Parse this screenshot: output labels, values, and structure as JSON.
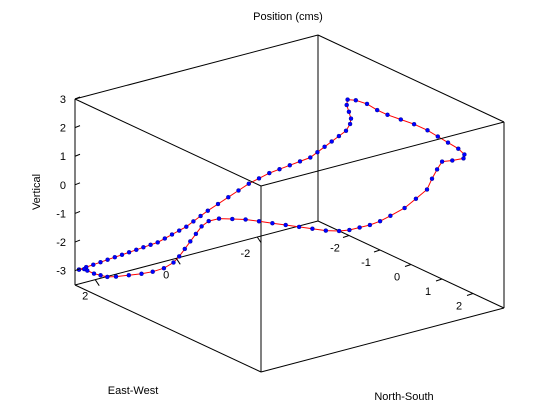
{
  "chart_data": {
    "type": "line",
    "title": "Position (cms)",
    "xlabel": "North-South",
    "ylabel": "East-West",
    "zlabel": "Vertical",
    "xlim": [
      -3,
      3
    ],
    "ylim": [
      -3.5,
      2.5
    ],
    "zlim": [
      -3.5,
      3
    ],
    "xticks": [
      "-2",
      "-1",
      "0",
      "1",
      "2"
    ],
    "yticks": [
      "2",
      "0",
      "-2"
    ],
    "zticks": [
      "3",
      "2",
      "1",
      "0",
      "-1",
      "-2",
      "-3"
    ],
    "grid": false,
    "colors": {
      "line": "#ff0000",
      "marker": "#0000ff"
    },
    "series": [
      {
        "points": [
          [
            -3.0,
            2.4,
            -3.0
          ],
          [
            -2.9,
            2.3,
            -2.9
          ],
          [
            -2.8,
            2.2,
            -2.8
          ],
          [
            -2.7,
            2.1,
            -2.7
          ],
          [
            -2.6,
            2.0,
            -2.6
          ],
          [
            -2.5,
            1.9,
            -2.5
          ],
          [
            -2.4,
            1.8,
            -2.4
          ],
          [
            -2.3,
            1.7,
            -2.3
          ],
          [
            -2.2,
            1.6,
            -2.2
          ],
          [
            -2.1,
            1.5,
            -2.1
          ],
          [
            -2.0,
            1.4,
            -2.0
          ],
          [
            -1.9,
            1.3,
            -1.9
          ],
          [
            -1.8,
            1.2,
            -1.75
          ],
          [
            -1.7,
            1.1,
            -1.6
          ],
          [
            -1.6,
            1.0,
            -1.45
          ],
          [
            -1.5,
            0.9,
            -1.3
          ],
          [
            -1.4,
            0.8,
            -1.1
          ],
          [
            -1.3,
            0.7,
            -0.9
          ],
          [
            -1.2,
            0.6,
            -0.7
          ],
          [
            -1.0,
            0.5,
            -0.4
          ],
          [
            -0.8,
            0.4,
            -0.1
          ],
          [
            -0.6,
            0.3,
            0.2
          ],
          [
            -0.4,
            0.2,
            0.5
          ],
          [
            -0.2,
            0.1,
            0.75
          ],
          [
            0.0,
            0.0,
            1.0
          ],
          [
            0.2,
            -0.1,
            1.2
          ],
          [
            0.4,
            -0.2,
            1.4
          ],
          [
            0.6,
            -0.3,
            1.6
          ],
          [
            0.8,
            -0.4,
            1.8
          ],
          [
            0.9,
            -0.5,
            2.0
          ],
          [
            1.0,
            -0.6,
            2.2
          ],
          [
            1.1,
            -0.7,
            2.4
          ],
          [
            1.2,
            -0.8,
            2.6
          ],
          [
            1.3,
            -0.9,
            2.8
          ],
          [
            1.3,
            -1.0,
            3.0
          ],
          [
            1.2,
            -1.1,
            3.1
          ],
          [
            1.0,
            -1.2,
            3.2
          ],
          [
            0.8,
            -1.3,
            3.3
          ],
          [
            0.7,
            -1.4,
            3.4
          ],
          [
            0.7,
            -1.6,
            3.3
          ],
          [
            0.8,
            -1.8,
            3.15
          ],
          [
            1.0,
            -1.9,
            3.0
          ],
          [
            1.2,
            -2.0,
            2.9
          ],
          [
            1.5,
            -2.1,
            2.85
          ],
          [
            1.8,
            -2.2,
            2.8
          ],
          [
            2.1,
            -2.3,
            2.7
          ],
          [
            2.3,
            -2.4,
            2.55
          ],
          [
            2.5,
            -2.5,
            2.4
          ],
          [
            2.7,
            -2.6,
            2.25
          ],
          [
            2.9,
            -2.6,
            2.15
          ],
          [
            3.0,
            -2.5,
            2.1
          ],
          [
            2.9,
            -2.3,
            2.05
          ],
          [
            2.7,
            -2.2,
            1.95
          ],
          [
            2.8,
            -2.0,
            1.8
          ],
          [
            2.9,
            -1.8,
            1.6
          ],
          [
            3.0,
            -1.6,
            1.35
          ],
          [
            2.9,
            -1.4,
            1.05
          ],
          [
            2.8,
            -1.2,
            0.75
          ],
          [
            2.6,
            -1.0,
            0.45
          ],
          [
            2.4,
            -0.9,
            0.2
          ],
          [
            2.2,
            -0.8,
            0.0
          ],
          [
            2.0,
            -0.7,
            -0.15
          ],
          [
            1.8,
            -0.6,
            -0.3
          ],
          [
            1.6,
            -0.5,
            -0.4
          ],
          [
            1.3,
            -0.4,
            -0.5
          ],
          [
            1.0,
            -0.3,
            -0.55
          ],
          [
            0.7,
            -0.2,
            -0.6
          ],
          [
            0.4,
            -0.1,
            -0.65
          ],
          [
            0.1,
            0.0,
            -0.7
          ],
          [
            -0.2,
            0.1,
            -0.75
          ],
          [
            -0.5,
            0.2,
            -0.8
          ],
          [
            -0.8,
            0.3,
            -0.9
          ],
          [
            -1.1,
            0.4,
            -1.0
          ],
          [
            -1.3,
            0.5,
            -1.15
          ],
          [
            -1.4,
            0.6,
            -1.35
          ],
          [
            -1.45,
            0.7,
            -1.6
          ],
          [
            -1.5,
            0.8,
            -1.85
          ],
          [
            -1.55,
            0.9,
            -2.1
          ],
          [
            -1.6,
            1.0,
            -2.35
          ],
          [
            -1.65,
            1.1,
            -2.55
          ],
          [
            -1.7,
            1.3,
            -2.7
          ],
          [
            -1.8,
            1.5,
            -2.8
          ],
          [
            -1.9,
            1.7,
            -2.85
          ],
          [
            -2.05,
            1.9,
            -2.9
          ],
          [
            -2.2,
            2.1,
            -2.95
          ],
          [
            -2.35,
            2.2,
            -3.0
          ],
          [
            -2.5,
            2.25,
            -3.0
          ],
          [
            -2.65,
            2.3,
            -3.0
          ],
          [
            -2.8,
            2.35,
            -2.95
          ],
          [
            -2.9,
            2.35,
            -2.95
          ],
          [
            -3.0,
            2.4,
            -3.0
          ]
        ]
      }
    ]
  }
}
